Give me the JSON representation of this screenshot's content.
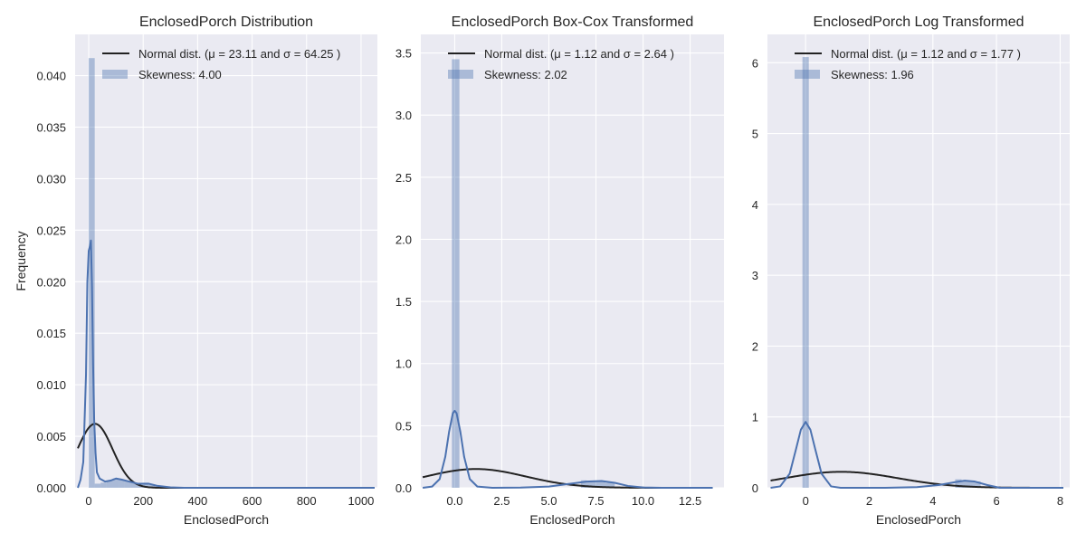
{
  "figure": {
    "background": "#ffffff",
    "axes_facecolor": "#EAEAF2",
    "grid_color": "#ffffff",
    "kde_color": "#4C72B0",
    "hist_color": "#4C72B0",
    "normal_color": "#222222"
  },
  "chart_data": [
    {
      "type": "histogram_kde",
      "title": "EnclosedPorch Distribution",
      "xlabel": "EnclosedPorch",
      "ylabel": "Frequency",
      "xlim": [
        -50,
        1060
      ],
      "ylim": [
        0,
        0.044
      ],
      "xticks": [
        0,
        200,
        400,
        600,
        800,
        1000
      ],
      "yticks": [
        0.0,
        0.005,
        0.01,
        0.015,
        0.02,
        0.025,
        0.03,
        0.035,
        0.04
      ],
      "ytick_labels": [
        "0.000",
        "0.005",
        "0.010",
        "0.015",
        "0.020",
        "0.025",
        "0.030",
        "0.035",
        "0.040"
      ],
      "xtick_labels": [
        "0",
        "200",
        "400",
        "600",
        "800",
        "1000"
      ],
      "legend": {
        "normal_label": "Normal dist. (μ = 23.11 and σ = 64.25 )",
        "hist_label": "Skewness: 4.00",
        "location": "upper-right"
      },
      "normal": {
        "mu": 23.11,
        "sigma": 64.25,
        "x_range": [
          -40,
          1050
        ]
      },
      "hist_bars": [
        {
          "x0": -0.5,
          "x1": 22,
          "height": 0.0417
        },
        {
          "x0": 22,
          "x1": 44,
          "height": 0.0004
        },
        {
          "x0": 44,
          "x1": 66,
          "height": 0.0005
        },
        {
          "x0": 66,
          "x1": 88,
          "height": 0.0007
        },
        {
          "x0": 88,
          "x1": 110,
          "height": 0.0009
        },
        {
          "x0": 110,
          "x1": 132,
          "height": 0.0008
        },
        {
          "x0": 132,
          "x1": 154,
          "height": 0.0007
        },
        {
          "x0": 154,
          "x1": 176,
          "height": 0.0005
        },
        {
          "x0": 176,
          "x1": 198,
          "height": 0.0004
        },
        {
          "x0": 198,
          "x1": 220,
          "height": 0.0005
        },
        {
          "x0": 220,
          "x1": 242,
          "height": 0.0003
        },
        {
          "x0": 242,
          "x1": 264,
          "height": 0.0001
        }
      ],
      "kde_points": [
        [
          -40,
          0.0
        ],
        [
          -30,
          0.0008
        ],
        [
          -20,
          0.0025
        ],
        [
          -10,
          0.011
        ],
        [
          -5,
          0.02
        ],
        [
          0,
          0.023
        ],
        [
          5,
          0.0235
        ],
        [
          8,
          0.024
        ],
        [
          12,
          0.0195
        ],
        [
          16,
          0.012
        ],
        [
          20,
          0.0066
        ],
        [
          25,
          0.0034
        ],
        [
          30,
          0.0015
        ],
        [
          40,
          0.0009
        ],
        [
          60,
          0.0006
        ],
        [
          80,
          0.0007
        ],
        [
          100,
          0.0009
        ],
        [
          120,
          0.0008
        ],
        [
          150,
          0.0006
        ],
        [
          180,
          0.0004
        ],
        [
          220,
          0.0004
        ],
        [
          250,
          0.0002
        ],
        [
          300,
          4e-05
        ],
        [
          350,
          0.0
        ],
        [
          1000,
          0.0
        ],
        [
          1050,
          0.0
        ]
      ]
    },
    {
      "type": "histogram_kde",
      "title": "EnclosedPorch Box-Cox Transformed",
      "xlabel": "EnclosedPorch",
      "ylabel": "",
      "xlim": [
        -1.8,
        14.3
      ],
      "ylim": [
        0,
        3.65
      ],
      "xticks": [
        0,
        2.5,
        5,
        7.5,
        10,
        12.5
      ],
      "xtick_labels": [
        "0.0",
        "2.5",
        "5.0",
        "7.5",
        "10.0",
        "12.5"
      ],
      "yticks": [
        0,
        0.5,
        1.0,
        1.5,
        2.0,
        2.5,
        3.0,
        3.5
      ],
      "ytick_labels": [
        "0.0",
        "0.5",
        "1.0",
        "1.5",
        "2.0",
        "2.5",
        "3.0",
        "3.5"
      ],
      "legend": {
        "normal_label": "Normal dist. (μ = 1.12 and σ = 2.64 )",
        "hist_label": "Skewness: 2.02",
        "location": "upper-right"
      },
      "normal": {
        "mu": 1.12,
        "sigma": 2.64,
        "x_range": [
          -1.7,
          13.7
        ]
      },
      "hist_bars": [
        {
          "x0": -0.15,
          "x1": 0.25,
          "height": 3.45
        },
        {
          "x0": 6.7,
          "x1": 7.0,
          "height": 0.06
        },
        {
          "x0": 7.0,
          "x1": 7.5,
          "height": 0.05
        },
        {
          "x0": 7.5,
          "x1": 8.0,
          "height": 0.05
        },
        {
          "x0": 8.0,
          "x1": 8.5,
          "height": 0.04
        },
        {
          "x0": 8.5,
          "x1": 9.0,
          "height": 0.01
        }
      ],
      "kde_points": [
        [
          -1.7,
          0.0
        ],
        [
          -1.2,
          0.01
        ],
        [
          -0.8,
          0.07
        ],
        [
          -0.5,
          0.25
        ],
        [
          -0.3,
          0.45
        ],
        [
          -0.1,
          0.6
        ],
        [
          0.0,
          0.62
        ],
        [
          0.1,
          0.6
        ],
        [
          0.3,
          0.45
        ],
        [
          0.5,
          0.25
        ],
        [
          0.8,
          0.07
        ],
        [
          1.2,
          0.01
        ],
        [
          2.0,
          0.0
        ],
        [
          3.5,
          0.002
        ],
        [
          5.0,
          0.01
        ],
        [
          6.0,
          0.03
        ],
        [
          7.0,
          0.05
        ],
        [
          7.8,
          0.055
        ],
        [
          8.5,
          0.04
        ],
        [
          9.2,
          0.015
        ],
        [
          10.0,
          0.003
        ],
        [
          11.0,
          0.0
        ],
        [
          13.7,
          0.0
        ]
      ]
    },
    {
      "type": "histogram_kde",
      "title": "EnclosedPorch Log Transformed",
      "xlabel": "EnclosedPorch",
      "ylabel": "",
      "xlim": [
        -1.2,
        8.3
      ],
      "ylim": [
        0,
        6.4
      ],
      "xticks": [
        0,
        2,
        4,
        6,
        8
      ],
      "xtick_labels": [
        "0",
        "2",
        "4",
        "6",
        "8"
      ],
      "yticks": [
        0,
        1,
        2,
        3,
        4,
        5,
        6
      ],
      "ytick_labels": [
        "0",
        "1",
        "2",
        "3",
        "4",
        "5",
        "6"
      ],
      "legend": {
        "normal_label": "Normal dist. (μ = 1.12 and σ = 1.77 )",
        "hist_label": "Skewness: 1.96",
        "location": "upper-right"
      },
      "normal": {
        "mu": 1.12,
        "sigma": 1.77,
        "x_range": [
          -1.1,
          8.1
        ]
      },
      "hist_bars": [
        {
          "x0": -0.1,
          "x1": 0.1,
          "height": 6.08
        },
        {
          "x0": 4.7,
          "x1": 4.9,
          "height": 0.12
        },
        {
          "x0": 4.9,
          "x1": 5.2,
          "height": 0.1
        },
        {
          "x0": 5.2,
          "x1": 5.5,
          "height": 0.09
        }
      ],
      "kde_points": [
        [
          -1.1,
          0.0
        ],
        [
          -0.8,
          0.02
        ],
        [
          -0.5,
          0.2
        ],
        [
          -0.3,
          0.55
        ],
        [
          -0.15,
          0.82
        ],
        [
          0.0,
          0.93
        ],
        [
          0.15,
          0.82
        ],
        [
          0.3,
          0.55
        ],
        [
          0.5,
          0.2
        ],
        [
          0.8,
          0.02
        ],
        [
          1.1,
          0.0
        ],
        [
          2.5,
          0.0
        ],
        [
          3.5,
          0.01
        ],
        [
          4.2,
          0.04
        ],
        [
          4.7,
          0.08
        ],
        [
          5.0,
          0.1
        ],
        [
          5.3,
          0.09
        ],
        [
          5.7,
          0.04
        ],
        [
          6.1,
          0.0
        ],
        [
          8.1,
          0.0
        ]
      ]
    }
  ]
}
